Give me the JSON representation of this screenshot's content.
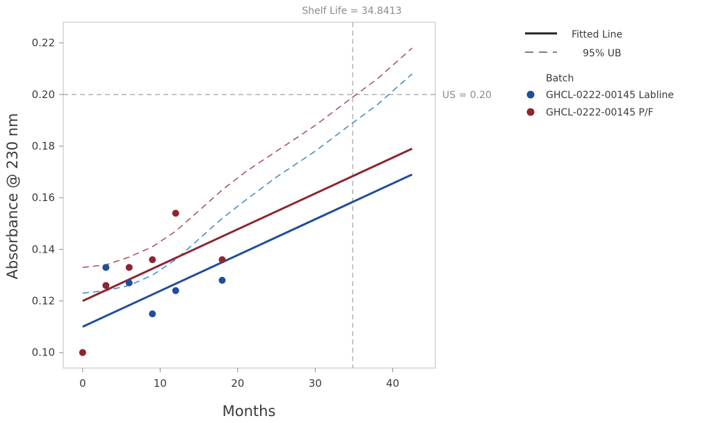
{
  "chart_data": {
    "type": "scatter",
    "xlabel": "Months",
    "ylabel": "Absorbance @ 230 nm",
    "xlim": [
      -2.5,
      45.5
    ],
    "ylim": [
      0.094,
      0.228
    ],
    "xticks": [
      0,
      10,
      20,
      30,
      40
    ],
    "yticks": [
      0.1,
      0.12,
      0.14,
      0.16,
      0.18,
      0.2,
      0.22
    ],
    "ytick_labels": [
      "0.10",
      "0.12",
      "0.14",
      "0.16",
      "0.18",
      "0.20",
      "0.22"
    ],
    "shelf_life": {
      "value": 34.8413,
      "label": "Shelf Life = 34.8413"
    },
    "spec_limit": {
      "value": 0.2,
      "label": "US = 0.20"
    },
    "grid": false,
    "legend": {
      "position": "right",
      "line_items": [
        {
          "label": "Fitted Line",
          "style": "solid"
        },
        {
          "label": "95% UB",
          "style": "dashed"
        }
      ],
      "group_title": "Batch"
    },
    "series": [
      {
        "name": "GHCL-0222-00145 Labline",
        "color": "#1f4e9c",
        "ub_color": "#3a84c8",
        "points": [
          [
            3,
            0.133
          ],
          [
            6,
            0.127
          ],
          [
            9,
            0.115
          ],
          [
            12,
            0.124
          ],
          [
            18,
            0.128
          ]
        ],
        "fit": {
          "x0": 0,
          "y0": 0.11,
          "x1": 42.5,
          "y1": 0.169
        },
        "ub": [
          [
            0,
            0.123
          ],
          [
            3,
            0.124
          ],
          [
            6,
            0.126
          ],
          [
            9,
            0.13
          ],
          [
            12,
            0.136
          ],
          [
            15,
            0.144
          ],
          [
            18,
            0.152
          ],
          [
            21,
            0.159
          ],
          [
            25,
            0.168
          ],
          [
            30,
            0.178
          ],
          [
            34.84,
            0.189
          ],
          [
            38,
            0.196
          ],
          [
            42.5,
            0.208
          ]
        ]
      },
      {
        "name": "GHCL-0222-00145 P/F",
        "color": "#8c2630",
        "ub_color": "#a8485a",
        "points": [
          [
            0,
            0.1
          ],
          [
            3,
            0.126
          ],
          [
            6,
            0.133
          ],
          [
            9,
            0.136
          ],
          [
            12,
            0.154
          ],
          [
            18,
            0.136
          ]
        ],
        "fit": {
          "x0": 0,
          "y0": 0.12,
          "x1": 42.5,
          "y1": 0.179
        },
        "ub": [
          [
            0,
            0.133
          ],
          [
            3,
            0.134
          ],
          [
            6,
            0.137
          ],
          [
            9,
            0.141
          ],
          [
            12,
            0.147
          ],
          [
            15,
            0.155
          ],
          [
            18,
            0.163
          ],
          [
            21,
            0.17
          ],
          [
            25,
            0.178
          ],
          [
            30,
            0.188
          ],
          [
            34.84,
            0.199
          ],
          [
            38,
            0.206
          ],
          [
            42.5,
            0.218
          ]
        ]
      }
    ]
  }
}
